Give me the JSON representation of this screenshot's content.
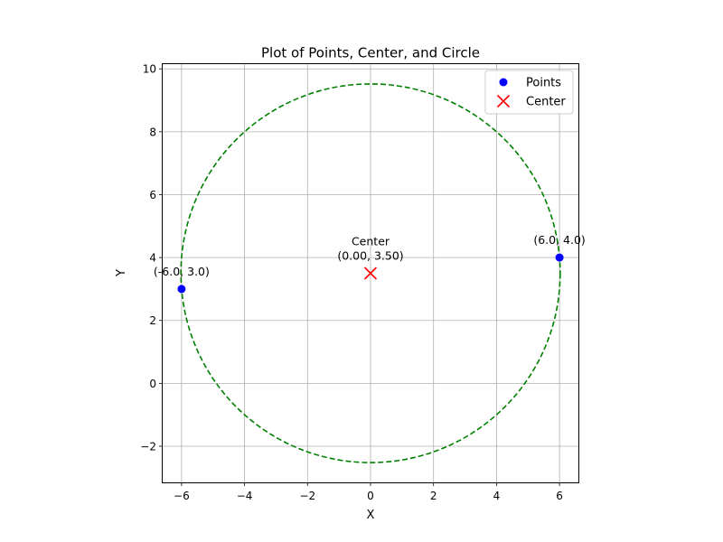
{
  "chart_data": {
    "type": "scatter",
    "title": "Plot of Points, Center, and Circle",
    "xlabel": "X",
    "ylabel": "Y",
    "xlim": [
      -6.6,
      6.6
    ],
    "ylim": [
      -3.15,
      10.15
    ],
    "xticks": [
      -6,
      -4,
      -2,
      0,
      2,
      4,
      6
    ],
    "xtick_labels": [
      "−6",
      "−4",
      "−2",
      "0",
      "2",
      "4",
      "6"
    ],
    "yticks": [
      -2,
      0,
      2,
      4,
      6,
      8,
      10
    ],
    "ytick_labels": [
      "−2",
      "0",
      "2",
      "4",
      "6",
      "8",
      "10"
    ],
    "grid": true,
    "legend_position": "top-right",
    "series": [
      {
        "name": "Points",
        "kind": "scatter-dot",
        "color": "#0000ff",
        "points": [
          {
            "x": -6.0,
            "y": 3.0,
            "label": "(-6.0, 3.0)"
          },
          {
            "x": 6.0,
            "y": 4.0,
            "label": "(6.0, 4.0)"
          }
        ]
      },
      {
        "name": "Center",
        "kind": "scatter-x",
        "color": "#ff0000",
        "points": [
          {
            "x": 0.0,
            "y": 3.5,
            "label_line1": "Center",
            "label_line2": "(0.00, 3.50)"
          }
        ]
      }
    ],
    "circle": {
      "center": [
        0.0,
        3.5
      ],
      "radius": 6.0208,
      "color": "#008000",
      "style": "dashed"
    }
  }
}
